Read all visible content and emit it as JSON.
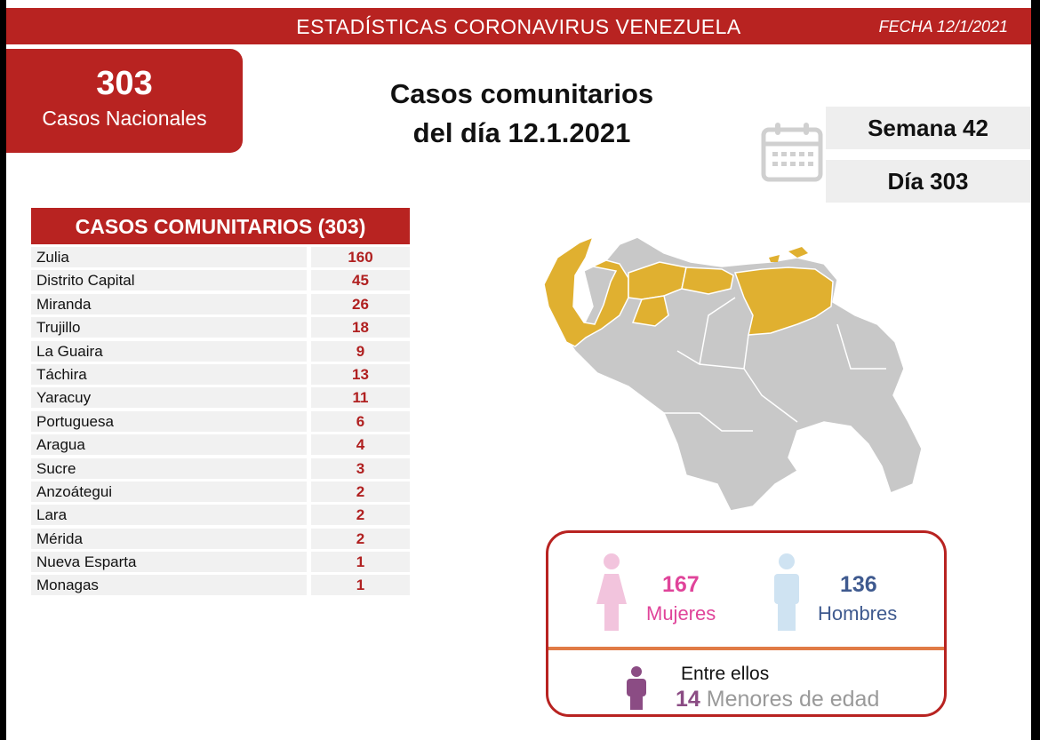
{
  "header": {
    "title": "ESTADÍSTICAS CORONAVIRUS VENEZUELA",
    "date": "FECHA 12/1/2021"
  },
  "national": {
    "count": "303",
    "label": "Casos Nacionales"
  },
  "headline": {
    "line1": "Casos comunitarios",
    "line2": "del día 12.1.2021"
  },
  "calendar": {
    "icon": "calendar-icon",
    "week": "Semana 42",
    "day": "Día 303"
  },
  "table": {
    "header": "CASOS COMUNITARIOS (303)",
    "rows": [
      {
        "state": "Zulia",
        "cases": "160"
      },
      {
        "state": "Distrito Capital",
        "cases": "45"
      },
      {
        "state": "Miranda",
        "cases": "26"
      },
      {
        "state": "Trujillo",
        "cases": "18"
      },
      {
        "state": "La Guaira",
        "cases": "9"
      },
      {
        "state": "Táchira",
        "cases": "13"
      },
      {
        "state": "Yaracuy",
        "cases": "11"
      },
      {
        "state": "Portuguesa",
        "cases": "6"
      },
      {
        "state": "Aragua",
        "cases": "4"
      },
      {
        "state": "Sucre",
        "cases": "3"
      },
      {
        "state": "Anzoátegui",
        "cases": "2"
      },
      {
        "state": "Lara",
        "cases": "2"
      },
      {
        "state": "Mérida",
        "cases": "2"
      },
      {
        "state": "Nueva Esparta",
        "cases": "1"
      },
      {
        "state": "Monagas",
        "cases": "1"
      }
    ]
  },
  "map": {
    "icon": "venezuela-map",
    "highlight_color": "#e0b030",
    "base_color": "#c8c8c8"
  },
  "gender": {
    "women_count": "167",
    "women_label": "Mujeres",
    "men_count": "136",
    "men_label": "Hombres",
    "women_color": "#e0449a",
    "men_color": "#3f5a8f"
  },
  "minors": {
    "intro": "Entre ellos",
    "count": "14",
    "label": "Menores de edad"
  }
}
